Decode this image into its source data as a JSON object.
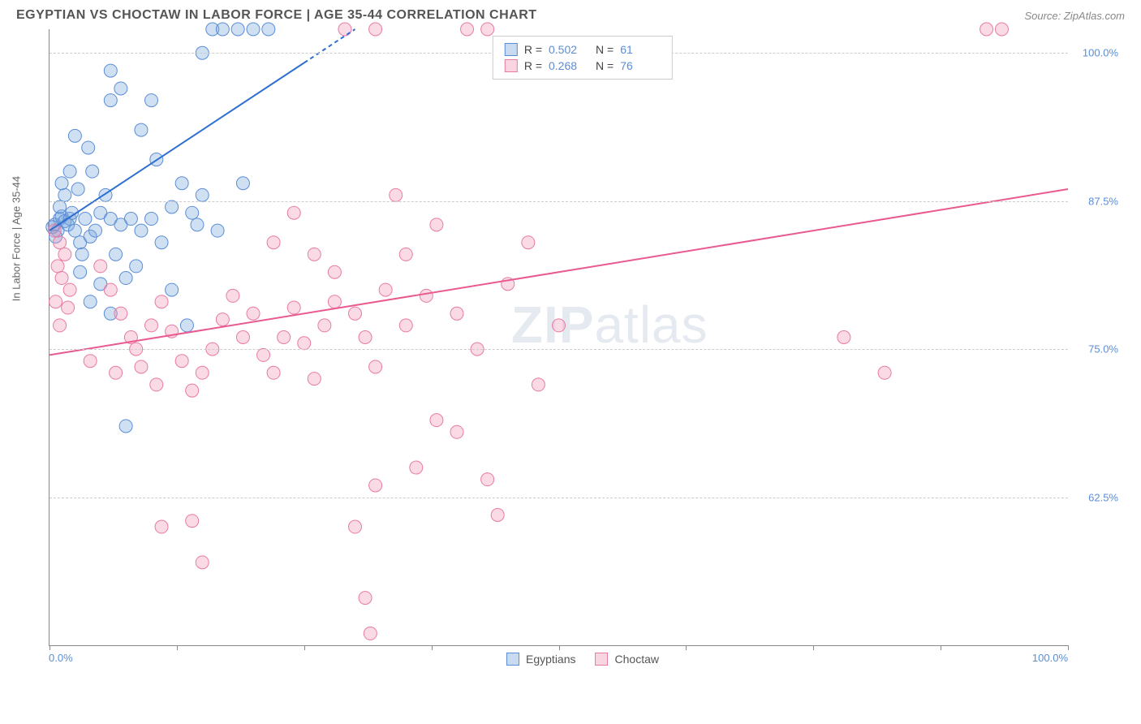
{
  "title": "EGYPTIAN VS CHOCTAW IN LABOR FORCE | AGE 35-44 CORRELATION CHART",
  "source": "Source: ZipAtlas.com",
  "y_axis_label": "In Labor Force | Age 35-44",
  "watermark_bold": "ZIP",
  "watermark_rest": "atlas",
  "chart": {
    "type": "scatter",
    "xlim": [
      0,
      100
    ],
    "ylim": [
      50,
      102
    ],
    "y_ticks": [
      62.5,
      75.0,
      87.5,
      100.0
    ],
    "y_tick_labels": [
      "62.5%",
      "75.0%",
      "87.5%",
      "100.0%"
    ],
    "x_ticks": [
      0,
      12.5,
      25,
      37.5,
      50,
      62.5,
      75,
      87.5,
      100
    ],
    "x_start_label": "0.0%",
    "x_end_label": "100.0%",
    "background_color": "#ffffff",
    "grid_color": "#cccccc",
    "series": [
      {
        "name": "Egyptians",
        "marker_fill": "rgba(120,165,220,0.35)",
        "marker_stroke": "#5b8dd6",
        "marker_radius": 8,
        "r_value": "0.502",
        "n_value": "61",
        "legend_sq_fill": "rgba(120,165,220,0.4)",
        "legend_sq_border": "#5b8dd6",
        "trend": {
          "x1": 0,
          "y1": 85,
          "x2": 30,
          "y2": 102,
          "dash_from_x": 25,
          "color": "#2e6fd0",
          "width": 2
        },
        "points": [
          [
            1,
            86
          ],
          [
            0.5,
            85.5
          ],
          [
            1.2,
            86.2
          ],
          [
            0.8,
            85
          ],
          [
            1.5,
            85.8
          ],
          [
            2,
            86
          ],
          [
            0.3,
            85.3
          ],
          [
            1.8,
            85.5
          ],
          [
            2.2,
            86.5
          ],
          [
            0.6,
            84.5
          ],
          [
            1,
            87
          ],
          [
            2.5,
            85
          ],
          [
            3,
            84
          ],
          [
            1.5,
            88
          ],
          [
            2,
            90
          ],
          [
            3.5,
            86
          ],
          [
            4,
            84.5
          ],
          [
            2.8,
            88.5
          ],
          [
            1.2,
            89
          ],
          [
            3.2,
            83
          ],
          [
            4.5,
            85
          ],
          [
            5,
            86.5
          ],
          [
            3.8,
            92
          ],
          [
            2.5,
            93
          ],
          [
            4.2,
            90
          ],
          [
            6,
            86
          ],
          [
            5.5,
            88
          ],
          [
            7,
            85.5
          ],
          [
            6.5,
            83
          ],
          [
            8,
            86
          ],
          [
            5,
            80.5
          ],
          [
            7.5,
            81
          ],
          [
            4,
            79
          ],
          [
            6,
            78
          ],
          [
            3,
            81.5
          ],
          [
            8.5,
            82
          ],
          [
            9,
            85
          ],
          [
            10,
            86
          ],
          [
            11,
            84
          ],
          [
            12,
            87
          ],
          [
            7,
            97
          ],
          [
            6,
            96
          ],
          [
            9,
            93.5
          ],
          [
            10.5,
            91
          ],
          [
            13,
            89
          ],
          [
            14,
            86.5
          ],
          [
            15,
            88
          ],
          [
            12,
            80
          ],
          [
            13.5,
            77
          ],
          [
            16,
            102
          ],
          [
            17,
            102
          ],
          [
            18.5,
            102
          ],
          [
            20,
            102
          ],
          [
            21.5,
            102
          ],
          [
            15,
            100
          ],
          [
            6,
            98.5
          ],
          [
            10,
            96
          ],
          [
            19,
            89
          ],
          [
            16.5,
            85
          ],
          [
            7.5,
            68.5
          ],
          [
            14.5,
            85.5
          ]
        ]
      },
      {
        "name": "Choctaw",
        "marker_fill": "rgba(240,150,180,0.35)",
        "marker_stroke": "#e87ba4",
        "marker_radius": 8,
        "r_value": "0.268",
        "n_value": "76",
        "legend_sq_fill": "rgba(240,150,180,0.4)",
        "legend_sq_border": "#e87ba4",
        "trend": {
          "x1": 0,
          "y1": 74.5,
          "x2": 100,
          "y2": 88.5,
          "color": "#e85a90",
          "width": 2
        },
        "points": [
          [
            0.5,
            85
          ],
          [
            1,
            84
          ],
          [
            1.5,
            83
          ],
          [
            0.8,
            82
          ],
          [
            1.2,
            81
          ],
          [
            2,
            80
          ],
          [
            0.6,
            79
          ],
          [
            1.8,
            78.5
          ],
          [
            1,
            77
          ],
          [
            5,
            82
          ],
          [
            6,
            80
          ],
          [
            7,
            78
          ],
          [
            8,
            76
          ],
          [
            4,
            74
          ],
          [
            6.5,
            73
          ],
          [
            8.5,
            75
          ],
          [
            10,
            77
          ],
          [
            11,
            79
          ],
          [
            12,
            76.5
          ],
          [
            9,
            73.5
          ],
          [
            10.5,
            72
          ],
          [
            13,
            74
          ],
          [
            14,
            71.5
          ],
          [
            15,
            73
          ],
          [
            16,
            75
          ],
          [
            17,
            77.5
          ],
          [
            18,
            79.5
          ],
          [
            19,
            76
          ],
          [
            20,
            78
          ],
          [
            21,
            74.5
          ],
          [
            22,
            73
          ],
          [
            23,
            76
          ],
          [
            24,
            78.5
          ],
          [
            25,
            75.5
          ],
          [
            26,
            72.5
          ],
          [
            27,
            77
          ],
          [
            28,
            79
          ],
          [
            22,
            84
          ],
          [
            24,
            86.5
          ],
          [
            26,
            83
          ],
          [
            28,
            81.5
          ],
          [
            30,
            78
          ],
          [
            31,
            76
          ],
          [
            32,
            73.5
          ],
          [
            33,
            80
          ],
          [
            35,
            77
          ],
          [
            29,
            102
          ],
          [
            32,
            102
          ],
          [
            41,
            102
          ],
          [
            43,
            102
          ],
          [
            34,
            88
          ],
          [
            37,
            79.5
          ],
          [
            40,
            78
          ],
          [
            42,
            75
          ],
          [
            45,
            80.5
          ],
          [
            38,
            69
          ],
          [
            36,
            65
          ],
          [
            32,
            63.5
          ],
          [
            14,
            60.5
          ],
          [
            11,
            60
          ],
          [
            30,
            60
          ],
          [
            31,
            54
          ],
          [
            31.5,
            51
          ],
          [
            15,
            57
          ],
          [
            44,
            61
          ],
          [
            40,
            68
          ],
          [
            43,
            64
          ],
          [
            35,
            83
          ],
          [
            48,
            72
          ],
          [
            78,
            76
          ],
          [
            82,
            73
          ],
          [
            92,
            102
          ],
          [
            93.5,
            102
          ],
          [
            50,
            77
          ],
          [
            47,
            84
          ],
          [
            38,
            85.5
          ]
        ]
      }
    ]
  },
  "legend_top": {
    "r_label": "R =",
    "n_label": "N ="
  },
  "legend_bottom": [
    {
      "label": "Egyptians",
      "fill": "rgba(120,165,220,0.4)",
      "border": "#5b8dd6"
    },
    {
      "label": "Choctaw",
      "fill": "rgba(240,150,180,0.4)",
      "border": "#e87ba4"
    }
  ]
}
